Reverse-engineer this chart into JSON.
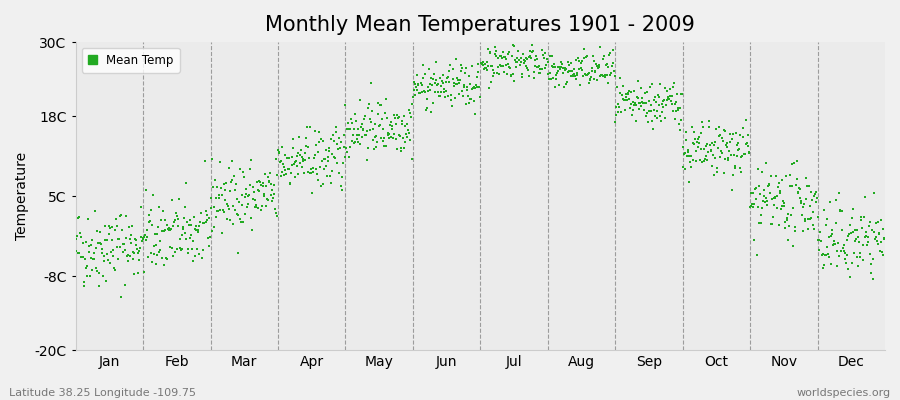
{
  "title": "Monthly Mean Temperatures 1901 - 2009",
  "ylabel": "Temperature",
  "subtitle": "Latitude 38.25 Longitude -109.75",
  "watermark": "worldspecies.org",
  "legend_label": "Mean Temp",
  "marker_color": "#22AA22",
  "marker_size": 3,
  "ylim": [
    -20,
    30
  ],
  "yticks": [
    -20,
    -8,
    5,
    18,
    30
  ],
  "ytick_labels": [
    "-20C",
    "-8C",
    "5C",
    "18C",
    "30C"
  ],
  "month_labels": [
    "Jan",
    "Feb",
    "Mar",
    "Apr",
    "May",
    "Jun",
    "Jul",
    "Aug",
    "Sep",
    "Oct",
    "Nov",
    "Dec"
  ],
  "background_color": "#f0f0f0",
  "plot_bg_color": "#ebebeb",
  "title_fontsize": 15,
  "axis_fontsize": 10,
  "n_years": 109,
  "monthly_means": [
    -3.5,
    -1.5,
    4.5,
    10.5,
    16.0,
    22.5,
    26.5,
    25.0,
    19.5,
    12.0,
    3.5,
    -2.5
  ],
  "monthly_stds": [
    3.2,
    3.0,
    2.8,
    2.5,
    2.3,
    1.8,
    1.5,
    1.5,
    1.8,
    2.3,
    2.8,
    3.0
  ],
  "warming_trend": 0.006
}
